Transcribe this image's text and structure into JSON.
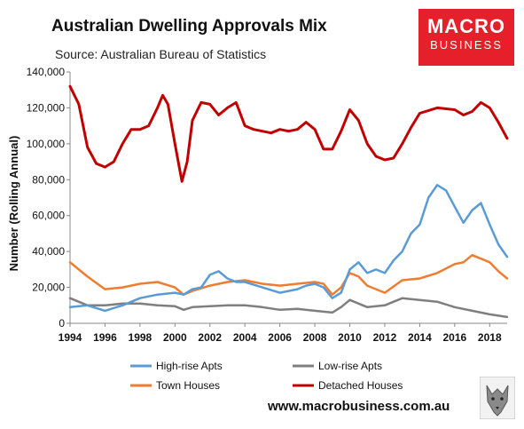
{
  "header": {
    "title": "Australian Dwelling Approvals Mix",
    "subtitle": "Source: Australian Bureau of Statistics"
  },
  "brand": {
    "line1": "MACRO",
    "line2": "BUSINESS",
    "color": "#e5202a"
  },
  "footer": {
    "website": "www.macrobusiness.com.au"
  },
  "chart_data": {
    "type": "line",
    "title": "Australian Dwelling Approvals Mix",
    "xlabel": "",
    "ylabel": "Number (Rolling Annual)",
    "xlim": [
      1994,
      2019
    ],
    "ylim": [
      0,
      140000
    ],
    "x_ticks": [
      1994,
      1996,
      1998,
      2000,
      2002,
      2004,
      2006,
      2008,
      2010,
      2012,
      2014,
      2016,
      2018
    ],
    "y_ticks": [
      0,
      20000,
      40000,
      60000,
      80000,
      100000,
      120000,
      140000
    ],
    "y_tick_labels": [
      "0",
      "20,000",
      "40,000",
      "60,000",
      "80,000",
      "100,000",
      "120,000",
      "140,000"
    ],
    "grid": false,
    "legend": "bottom",
    "series": [
      {
        "name": "High-rise Apts",
        "color": "#5b9bd5",
        "x": [
          1994,
          1995,
          1996,
          1997,
          1998,
          1999,
          2000,
          2000.5,
          2001,
          2001.5,
          2002,
          2002.5,
          2003,
          2003.5,
          2004,
          2005,
          2006,
          2007,
          2007.5,
          2008,
          2008.5,
          2009,
          2009.5,
          2010,
          2010.5,
          2011,
          2011.5,
          2012,
          2012.5,
          2013,
          2013.5,
          2014,
          2014.5,
          2015,
          2015.5,
          2016,
          2016.5,
          2017,
          2017.5,
          2018,
          2018.5,
          2019
        ],
        "values": [
          9000,
          10000,
          7000,
          10000,
          14000,
          16000,
          17000,
          16000,
          19000,
          20000,
          27000,
          29000,
          25000,
          23000,
          23000,
          20000,
          17000,
          19000,
          21000,
          22000,
          20000,
          14000,
          17000,
          30000,
          34000,
          28000,
          30000,
          28000,
          35000,
          40000,
          50000,
          55000,
          70000,
          77000,
          74000,
          65000,
          56000,
          63000,
          67000,
          55000,
          44000,
          37000
        ]
      },
      {
        "name": "Low-rise Apts",
        "color": "#7f7f7f",
        "x": [
          1994,
          1995,
          1996,
          1997,
          1998,
          1999,
          2000,
          2000.5,
          2001,
          2002,
          2003,
          2004,
          2005,
          2006,
          2007,
          2008,
          2009,
          2009.5,
          2010,
          2011,
          2012,
          2013,
          2014,
          2015,
          2016,
          2017,
          2018,
          2019
        ],
        "values": [
          14000,
          10000,
          10000,
          11000,
          11000,
          10000,
          9500,
          7500,
          9000,
          9500,
          10000,
          10000,
          9000,
          7500,
          8000,
          7000,
          6000,
          9000,
          13000,
          9000,
          10000,
          14000,
          13000,
          12000,
          9000,
          7000,
          5000,
          3500
        ]
      },
      {
        "name": "Town Houses",
        "color": "#ed7d31",
        "x": [
          1994,
          1995,
          1996,
          1997,
          1998,
          1999,
          2000,
          2000.5,
          2001,
          2002,
          2003,
          2004,
          2005,
          2006,
          2007,
          2008,
          2008.5,
          2009,
          2009.5,
          2010,
          2010.5,
          2011,
          2012,
          2013,
          2014,
          2015,
          2016,
          2016.5,
          2017,
          2017.5,
          2018,
          2018.5,
          2019
        ],
        "values": [
          34000,
          26000,
          19000,
          20000,
          22000,
          23000,
          20000,
          16000,
          18000,
          21000,
          23000,
          24000,
          22000,
          21000,
          22000,
          23000,
          22000,
          16000,
          20000,
          28000,
          26000,
          21000,
          17000,
          24000,
          25000,
          28000,
          33000,
          34000,
          38000,
          36000,
          34000,
          29000,
          25000
        ]
      },
      {
        "name": "Detached Houses",
        "color": "#c00000",
        "x": [
          1994,
          1994.5,
          1995,
          1995.5,
          1996,
          1996.5,
          1997,
          1997.5,
          1998,
          1998.5,
          1999,
          1999.3,
          1999.6,
          2000,
          2000.4,
          2000.7,
          2001,
          2001.5,
          2002,
          2002.5,
          2003,
          2003.5,
          2004,
          2004.5,
          2005,
          2005.5,
          2006,
          2006.5,
          2007,
          2007.5,
          2008,
          2008.5,
          2009,
          2009.5,
          2010,
          2010.5,
          2011,
          2011.5,
          2012,
          2012.5,
          2013,
          2013.5,
          2014,
          2015,
          2016,
          2016.5,
          2017,
          2017.5,
          2018,
          2018.5,
          2019
        ],
        "values": [
          132000,
          122000,
          98000,
          89000,
          87000,
          90000,
          100000,
          108000,
          108000,
          110000,
          120000,
          127000,
          122000,
          100000,
          79000,
          90000,
          113000,
          123000,
          122000,
          116000,
          120000,
          123000,
          110000,
          108000,
          107000,
          106000,
          108000,
          107000,
          108000,
          112000,
          108000,
          97000,
          97000,
          107000,
          119000,
          113000,
          100000,
          93000,
          91000,
          92000,
          100000,
          109000,
          117000,
          120000,
          119000,
          116000,
          118000,
          123000,
          120000,
          112000,
          103000
        ]
      }
    ]
  }
}
